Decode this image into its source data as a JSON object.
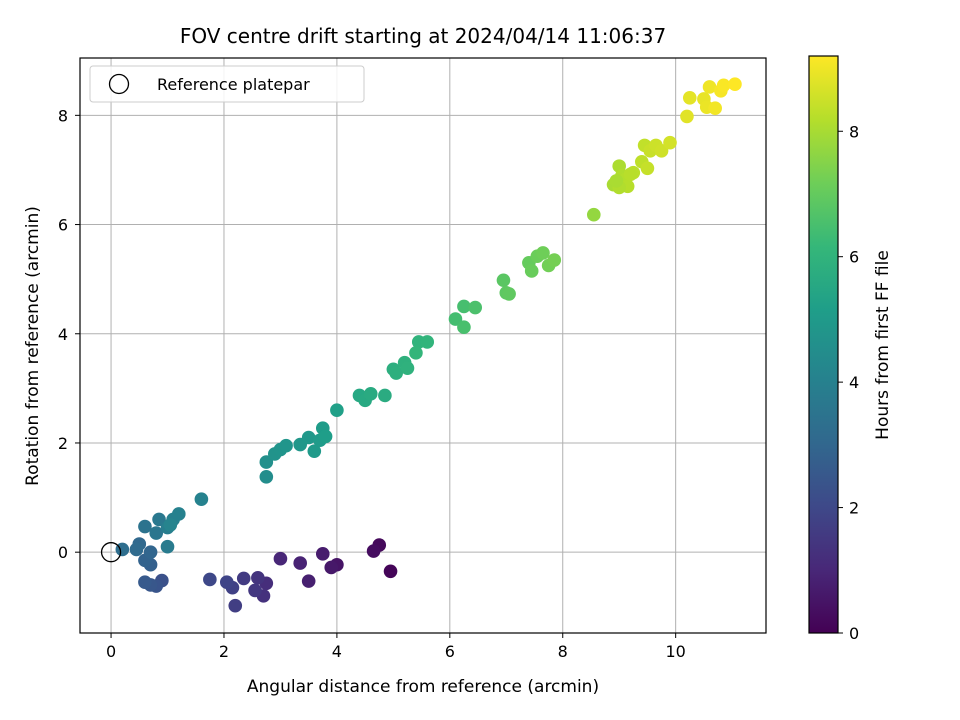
{
  "chart_data": {
    "type": "scatter",
    "title": "FOV centre drift starting at 2024/04/14 11:06:37",
    "xlabel": "Angular distance from reference (arcmin)",
    "ylabel": "Rotation from reference (arcmin)",
    "xlim": [
      -0.55,
      11.6
    ],
    "ylim": [
      -1.48,
      9.05
    ],
    "xticks": [
      0,
      2,
      4,
      6,
      8,
      10
    ],
    "yticks": [
      0,
      2,
      4,
      6,
      8
    ],
    "grid": true,
    "legend": {
      "placement": "upper-left",
      "entries": [
        {
          "label": "Reference platepar",
          "marker": "open-circle",
          "x": 0,
          "y": 0
        }
      ]
    },
    "colorbar": {
      "label": "Hours from first FF file",
      "colormap": "viridis",
      "range": [
        0,
        9.2
      ],
      "ticks": [
        0,
        2,
        4,
        6,
        8
      ],
      "stops": [
        "#440154",
        "#482878",
        "#3e4989",
        "#31688e",
        "#26828e",
        "#1f9e89",
        "#35b779",
        "#6ece58",
        "#b5de2b",
        "#fde725"
      ]
    },
    "points": [
      [
        4.95,
        -0.35,
        0.1
      ],
      [
        4.75,
        0.13,
        0.2
      ],
      [
        4.65,
        0.02,
        0.3
      ],
      [
        4.0,
        -0.23,
        0.5
      ],
      [
        3.9,
        -0.28,
        0.6
      ],
      [
        3.75,
        -0.03,
        0.7
      ],
      [
        3.5,
        -0.53,
        0.8
      ],
      [
        3.35,
        -0.2,
        0.9
      ],
      [
        3.0,
        -0.12,
        1.0
      ],
      [
        2.75,
        -0.57,
        1.2
      ],
      [
        2.7,
        -0.8,
        1.3
      ],
      [
        2.6,
        -0.47,
        1.4
      ],
      [
        2.55,
        -0.7,
        1.5
      ],
      [
        2.35,
        -0.48,
        1.6
      ],
      [
        2.2,
        -0.98,
        1.7
      ],
      [
        2.15,
        -0.65,
        1.8
      ],
      [
        2.05,
        -0.55,
        1.9
      ],
      [
        1.75,
        -0.5,
        2.0
      ],
      [
        0.9,
        -0.52,
        2.3
      ],
      [
        0.8,
        -0.62,
        2.4
      ],
      [
        0.7,
        -0.6,
        2.5
      ],
      [
        0.6,
        -0.55,
        2.6
      ],
      [
        0.7,
        -0.23,
        2.8
      ],
      [
        0.6,
        -0.15,
        2.9
      ],
      [
        0.7,
        0.0,
        3.0
      ],
      [
        0.5,
        0.15,
        3.1
      ],
      [
        0.45,
        0.05,
        3.2
      ],
      [
        0.2,
        0.05,
        3.3
      ],
      [
        0.6,
        0.47,
        3.5
      ],
      [
        0.8,
        0.35,
        3.6
      ],
      [
        0.85,
        0.6,
        3.7
      ],
      [
        1.0,
        0.1,
        3.8
      ],
      [
        1.0,
        0.45,
        3.9
      ],
      [
        1.1,
        0.6,
        4.0
      ],
      [
        1.2,
        0.7,
        4.05
      ],
      [
        1.6,
        0.97,
        4.1
      ],
      [
        1.05,
        0.5,
        4.15
      ],
      [
        2.75,
        1.38,
        4.5
      ],
      [
        2.75,
        1.65,
        4.6
      ],
      [
        2.9,
        1.8,
        4.7
      ],
      [
        3.0,
        1.88,
        4.75
      ],
      [
        3.1,
        1.95,
        4.8
      ],
      [
        3.35,
        1.97,
        4.85
      ],
      [
        3.5,
        2.1,
        4.9
      ],
      [
        3.6,
        1.85,
        4.95
      ],
      [
        3.7,
        2.05,
        5.0
      ],
      [
        3.75,
        2.27,
        5.05
      ],
      [
        3.8,
        2.12,
        5.1
      ],
      [
        4.0,
        2.6,
        5.2
      ],
      [
        4.4,
        2.87,
        5.5
      ],
      [
        4.5,
        2.78,
        5.55
      ],
      [
        4.6,
        2.9,
        5.6
      ],
      [
        4.85,
        2.87,
        5.65
      ],
      [
        5.0,
        3.35,
        5.75
      ],
      [
        5.05,
        3.28,
        5.8
      ],
      [
        5.2,
        3.47,
        5.85
      ],
      [
        5.25,
        3.37,
        5.9
      ],
      [
        5.45,
        3.85,
        5.95
      ],
      [
        5.6,
        3.85,
        6.0
      ],
      [
        5.4,
        3.65,
        6.05
      ],
      [
        6.1,
        4.27,
        6.4
      ],
      [
        6.25,
        4.5,
        6.45
      ],
      [
        6.25,
        4.12,
        6.5
      ],
      [
        6.45,
        4.48,
        6.55
      ],
      [
        6.95,
        4.98,
        6.8
      ],
      [
        7.0,
        4.75,
        6.85
      ],
      [
        7.05,
        4.73,
        6.9
      ],
      [
        7.4,
        5.3,
        7.0
      ],
      [
        7.45,
        5.15,
        7.05
      ],
      [
        7.55,
        5.42,
        7.1
      ],
      [
        7.65,
        5.48,
        7.15
      ],
      [
        7.75,
        5.25,
        7.2
      ],
      [
        7.85,
        5.35,
        7.25
      ],
      [
        8.55,
        6.18,
        7.7
      ],
      [
        8.9,
        6.73,
        8.0
      ],
      [
        9.0,
        7.07,
        8.05
      ],
      [
        9.05,
        6.9,
        8.1
      ],
      [
        9.1,
        6.82,
        8.15
      ],
      [
        9.15,
        6.7,
        8.2
      ],
      [
        9.25,
        6.95,
        8.25
      ],
      [
        9.4,
        7.15,
        8.3
      ],
      [
        9.45,
        7.45,
        8.35
      ],
      [
        9.5,
        7.03,
        8.4
      ],
      [
        9.55,
        7.35,
        8.45
      ],
      [
        9.65,
        7.45,
        8.5
      ],
      [
        9.75,
        7.35,
        8.55
      ],
      [
        9.9,
        7.5,
        8.6
      ],
      [
        10.2,
        7.98,
        8.8
      ],
      [
        10.25,
        8.32,
        8.85
      ],
      [
        10.5,
        8.3,
        8.9
      ],
      [
        10.55,
        8.15,
        8.95
      ],
      [
        10.6,
        8.52,
        9.0
      ],
      [
        10.7,
        8.13,
        9.05
      ],
      [
        10.8,
        8.45,
        9.1
      ],
      [
        10.85,
        8.55,
        9.15
      ],
      [
        11.05,
        8.57,
        9.2
      ],
      [
        9.0,
        6.68,
        8.12
      ],
      [
        9.2,
        6.92,
        8.22
      ],
      [
        8.95,
        6.8,
        8.02
      ]
    ]
  }
}
